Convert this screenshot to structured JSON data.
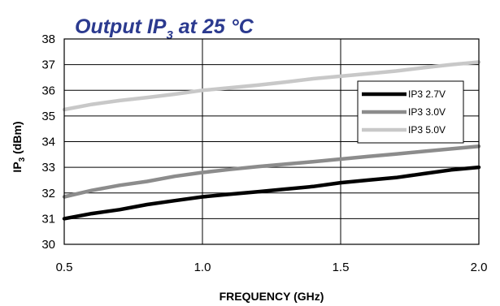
{
  "chart_data": {
    "type": "line",
    "title": "Output IP",
    "title_subscript": "3",
    "title_suffix": " at 25 °C",
    "xlabel": "FREQUENCY (GHz)",
    "ylabel_main": "IP",
    "ylabel_subscript": "3",
    "ylabel_suffix": " (dBm)",
    "xlim": [
      0.5,
      2.0
    ],
    "ylim": [
      30,
      38
    ],
    "x_ticks": [
      0.5,
      1.0,
      1.5,
      2.0
    ],
    "x_tick_labels": [
      "0.5",
      "1.0",
      "1.5",
      "2.0"
    ],
    "y_ticks": [
      30,
      31,
      32,
      33,
      34,
      35,
      36,
      37,
      38
    ],
    "y_tick_labels": [
      "30",
      "31",
      "32",
      "33",
      "34",
      "35",
      "36",
      "37",
      "38"
    ],
    "grid": true,
    "legend_position": "top-right",
    "series": [
      {
        "name": "IP3 2.7V",
        "color": "#000000",
        "x": [
          0.5,
          0.6,
          0.7,
          0.8,
          0.9,
          1.0,
          1.1,
          1.2,
          1.3,
          1.4,
          1.5,
          1.6,
          1.7,
          1.8,
          1.9,
          2.0
        ],
        "y": [
          31.0,
          31.2,
          31.35,
          31.55,
          31.7,
          31.85,
          31.95,
          32.05,
          32.15,
          32.25,
          32.4,
          32.5,
          32.6,
          32.75,
          32.9,
          33.0
        ]
      },
      {
        "name": "IP3 3.0V",
        "color": "#8c8c8c",
        "x": [
          0.5,
          0.6,
          0.7,
          0.8,
          0.9,
          1.0,
          1.1,
          1.2,
          1.3,
          1.4,
          1.5,
          1.6,
          1.7,
          1.8,
          1.9,
          2.0
        ],
        "y": [
          31.85,
          32.1,
          32.3,
          32.45,
          32.65,
          32.8,
          32.92,
          33.03,
          33.12,
          33.22,
          33.32,
          33.42,
          33.52,
          33.62,
          33.72,
          33.82
        ]
      },
      {
        "name": "IP3 5.0V",
        "color": "#c8c8c8",
        "x": [
          0.5,
          0.6,
          0.7,
          0.8,
          0.9,
          1.0,
          1.1,
          1.2,
          1.3,
          1.4,
          1.5,
          1.6,
          1.7,
          1.8,
          1.9,
          2.0
        ],
        "y": [
          35.25,
          35.45,
          35.6,
          35.72,
          35.85,
          36.0,
          36.1,
          36.2,
          36.32,
          36.45,
          36.55,
          36.65,
          36.75,
          36.88,
          37.0,
          37.1
        ]
      }
    ]
  }
}
